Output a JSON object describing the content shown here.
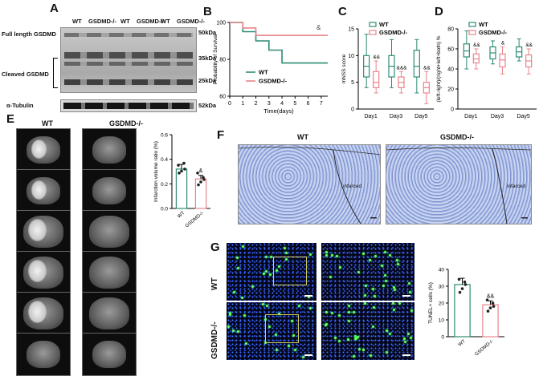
{
  "panels": {
    "A": "A",
    "B": "B",
    "C": "C",
    "D": "D",
    "E": "E",
    "F": "F",
    "G": "G"
  },
  "panelA": {
    "lanes": [
      "WT",
      "GSDMD-/-",
      "WT",
      "GSDMD-/-",
      "WT",
      "GSDMD-/-"
    ],
    "left_labels": {
      "full": "Full length GSDMD",
      "cleaved": "Cleaved GSDMD",
      "tubulin": "α-Tubulin"
    },
    "kda": [
      "50kDa",
      "35kDa",
      "25kDa",
      "52kDa"
    ]
  },
  "chart_survival": {
    "type": "line",
    "xlabel": "Time(days)",
    "ylabel": "Probability of Survival",
    "xlim": [
      0,
      7.5
    ],
    "ylim": [
      60,
      100
    ],
    "xticks": [
      "0",
      "1",
      "2",
      "3",
      "4",
      "5",
      "6",
      "7"
    ],
    "yticks": [
      "60",
      "80",
      "100"
    ],
    "annotation": "&",
    "series": [
      {
        "name": "WT",
        "color": "#2e8b74",
        "x": [
          0,
          1,
          2,
          3,
          4,
          7.5
        ],
        "y": [
          100,
          95,
          90,
          85,
          78,
          78
        ]
      },
      {
        "name": "GSDMD-/-",
        "color": "#e8848a",
        "x": [
          0,
          1,
          2,
          7.5
        ],
        "y": [
          100,
          97,
          93,
          93
        ]
      }
    ]
  },
  "chart_mnss": {
    "type": "box",
    "ylabel": "mNSS score",
    "ylim": [
      0,
      15
    ],
    "yticks": [
      "0",
      "5",
      "10",
      "15"
    ],
    "categories": [
      "Day1",
      "Day3",
      "Day5"
    ],
    "legend": [
      "WT",
      "GSDMD-/-"
    ],
    "annotations": [
      "&&",
      "&&&",
      "&&"
    ],
    "series": [
      {
        "name": "WT",
        "color": "#2e8b74",
        "boxes": [
          [
            4,
            6,
            8,
            10,
            14
          ],
          [
            4,
            6,
            8,
            10,
            13
          ],
          [
            3,
            6,
            8,
            11,
            13
          ]
        ]
      },
      {
        "name": "GSDMD-/-",
        "color": "#e8848a",
        "boxes": [
          [
            3,
            4,
            5,
            7,
            9
          ],
          [
            3,
            4,
            5,
            6,
            7
          ],
          [
            1,
            3,
            4,
            5,
            7
          ]
        ]
      }
    ]
  },
  "chart_cylinder": {
    "type": "box",
    "ylabel": "(left-right)/(right+left+both) %",
    "ylim": [
      0,
      80
    ],
    "yticks": [
      "0",
      "20",
      "40",
      "60",
      "80"
    ],
    "categories": [
      "Day1",
      "Day3",
      "Day5"
    ],
    "legend": [
      "WT",
      "GSDMD-/-"
    ],
    "annotations": [
      "&&",
      "&",
      "&&"
    ],
    "series": [
      {
        "name": "WT",
        "color": "#2e8b74",
        "boxes": [
          [
            40,
            52,
            58,
            65,
            78
          ],
          [
            45,
            50,
            56,
            62,
            68
          ],
          [
            48,
            52,
            57,
            62,
            70
          ]
        ]
      },
      {
        "name": "GSDMD-/-",
        "color": "#e8848a",
        "boxes": [
          [
            40,
            46,
            50,
            55,
            60
          ],
          [
            35,
            42,
            49,
            55,
            62
          ],
          [
            35,
            42,
            48,
            54,
            60
          ]
        ]
      }
    ]
  },
  "panelE": {
    "wt": "WT",
    "ko": "GSDMD-/-"
  },
  "chart_infarct": {
    "type": "bar",
    "ylabel": "Infarction volume ratio (%)",
    "ylim": [
      0,
      0.6
    ],
    "yticks": [
      "0.0",
      "0.2",
      "0.4",
      "0.6"
    ],
    "categories": [
      "WT",
      "GSDMD-/-"
    ],
    "values": [
      0.32,
      0.24
    ],
    "annotation": "&",
    "colors": [
      "#2e8b74",
      "#e8848a"
    ]
  },
  "panelF": {
    "wt": "WT",
    "ko": "GSDMD-/-",
    "infarct": "infarced"
  },
  "panelG": {
    "wt": "WT",
    "ko": "GSDMD-/-"
  },
  "chart_tunel": {
    "type": "bar",
    "ylabel": "TUNEL+ cells (%)",
    "ylim": [
      0,
      40
    ],
    "yticks": [
      "0",
      "10",
      "20",
      "30",
      "40"
    ],
    "categories": [
      "WT",
      "GSDMD-/-"
    ],
    "values": [
      31,
      19
    ],
    "annotation": "&&",
    "colors": [
      "#2e8b74",
      "#e8848a"
    ]
  }
}
